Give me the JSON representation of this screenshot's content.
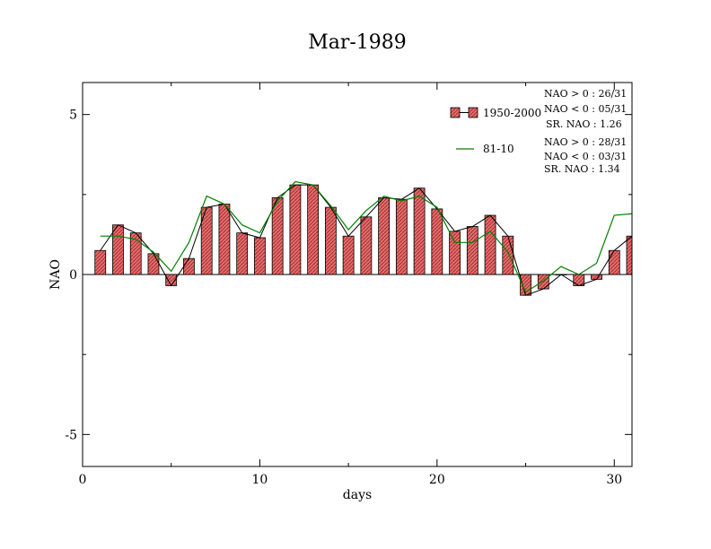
{
  "chart_data": {
    "type": "bar",
    "title": "Mar-1989",
    "xlabel": "days",
    "ylabel": "NAO",
    "xlim": [
      0,
      31
    ],
    "ylim": [
      -6,
      6
    ],
    "x_ticks": [
      0,
      10,
      20,
      30
    ],
    "x_tick_labels": [
      "0",
      "10",
      "20",
      "30"
    ],
    "y_ticks": [
      -5,
      0,
      5
    ],
    "y_tick_labels": [
      "-5",
      "0",
      "5"
    ],
    "grid": false,
    "days": [
      1,
      2,
      3,
      4,
      5,
      6,
      7,
      8,
      9,
      10,
      11,
      12,
      13,
      14,
      15,
      16,
      17,
      18,
      19,
      20,
      21,
      22,
      23,
      24,
      25,
      26,
      27,
      28,
      29,
      30,
      31
    ],
    "series": [
      {
        "name": "1950-2000",
        "kind": "bar-with-line",
        "color": "#e06060",
        "line_color": "#000000",
        "values": [
          0.75,
          1.55,
          1.3,
          0.65,
          -0.35,
          0.5,
          2.1,
          2.2,
          1.3,
          1.15,
          2.4,
          2.8,
          2.8,
          2.1,
          1.2,
          1.8,
          2.4,
          2.35,
          2.7,
          2.05,
          1.35,
          1.5,
          1.85,
          1.2,
          -0.65,
          -0.45,
          0.0,
          -0.35,
          -0.15,
          0.75,
          1.2
        ]
      },
      {
        "name": "81-10",
        "kind": "line",
        "color": "#008000",
        "values": [
          1.2,
          1.2,
          1.1,
          0.7,
          0.1,
          1.0,
          2.45,
          2.2,
          1.55,
          1.3,
          2.3,
          2.9,
          2.8,
          2.15,
          1.4,
          2.0,
          2.45,
          2.3,
          2.45,
          2.1,
          1.0,
          1.0,
          1.35,
          0.7,
          -0.55,
          -0.2,
          0.25,
          0.0,
          0.35,
          1.85,
          1.9
        ]
      }
    ],
    "legend": {
      "placement": "top-right",
      "entries": [
        {
          "label": "1950-2000",
          "stats": [
            "NAO > 0 : 26/31",
            "NAO < 0 : 05/31",
            "SR. NAO :  1.26"
          ]
        },
        {
          "label": "81-10",
          "stats": [
            "NAO > 0 : 28/31",
            "NAO < 0 : 03/31",
            "SR. NAO :  1.34"
          ]
        }
      ]
    }
  }
}
